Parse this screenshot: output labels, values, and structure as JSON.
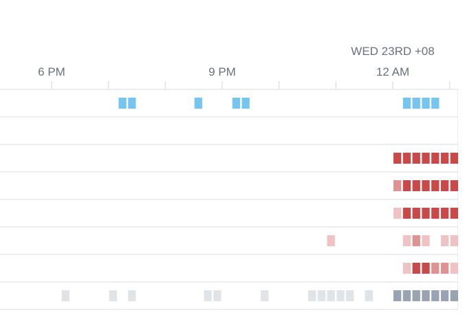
{
  "header": {
    "date_label": "WED 23RD +08"
  },
  "axis": {
    "hours": [
      0,
      1,
      2,
      3,
      4,
      5,
      6,
      7
    ],
    "labels": [
      "6 PM",
      null,
      null,
      "9 PM",
      null,
      null,
      "12 AM",
      null
    ]
  },
  "rows": [
    {
      "colors": [
        "#ffffff",
        "#76c5ef"
      ],
      "cells": [
        {
          "slot": 7,
          "level": 1
        },
        {
          "slot": 8,
          "level": 1
        },
        {
          "slot": 15,
          "level": 1
        },
        {
          "slot": 19,
          "level": 1
        },
        {
          "slot": 20,
          "level": 1
        },
        {
          "slot": 37,
          "level": 1
        },
        {
          "slot": 38,
          "level": 1
        },
        {
          "slot": 39,
          "level": 1
        },
        {
          "slot": 40,
          "level": 1
        }
      ]
    },
    {
      "colors": [
        "#ffffff"
      ],
      "cells": []
    },
    {
      "colors": [
        "#ffffff",
        "#efc3c3",
        "#de9292",
        "#c94848"
      ],
      "cells": [
        {
          "slot": 36,
          "level": 3
        },
        {
          "slot": 37,
          "level": 3
        },
        {
          "slot": 38,
          "level": 3
        },
        {
          "slot": 39,
          "level": 3
        },
        {
          "slot": 40,
          "level": 3
        },
        {
          "slot": 41,
          "level": 3
        },
        {
          "slot": 42,
          "level": 3
        }
      ]
    },
    {
      "colors": [
        "#ffffff",
        "#efc3c3",
        "#de9292",
        "#c94848"
      ],
      "cells": [
        {
          "slot": 36,
          "level": 2
        },
        {
          "slot": 37,
          "level": 3
        },
        {
          "slot": 38,
          "level": 3
        },
        {
          "slot": 39,
          "level": 3
        },
        {
          "slot": 40,
          "level": 3
        },
        {
          "slot": 41,
          "level": 3
        },
        {
          "slot": 42,
          "level": 3
        }
      ]
    },
    {
      "colors": [
        "#ffffff",
        "#efc3c3",
        "#de9292",
        "#c94848"
      ],
      "cells": [
        {
          "slot": 36,
          "level": 1
        },
        {
          "slot": 37,
          "level": 3
        },
        {
          "slot": 38,
          "level": 3
        },
        {
          "slot": 39,
          "level": 3
        },
        {
          "slot": 40,
          "level": 3
        },
        {
          "slot": 41,
          "level": 3
        },
        {
          "slot": 42,
          "level": 3
        }
      ]
    },
    {
      "colors": [
        "#ffffff",
        "#efc3c3",
        "#de9292",
        "#c94848"
      ],
      "cells": [
        {
          "slot": 29,
          "level": 1
        },
        {
          "slot": 37,
          "level": 1
        },
        {
          "slot": 38,
          "level": 2
        },
        {
          "slot": 39,
          "level": 1
        },
        {
          "slot": 41,
          "level": 1
        },
        {
          "slot": 42,
          "level": 1
        }
      ]
    },
    {
      "colors": [
        "#ffffff",
        "#efc3c3",
        "#de9292",
        "#c94848"
      ],
      "cells": [
        {
          "slot": 37,
          "level": 1
        },
        {
          "slot": 38,
          "level": 3
        },
        {
          "slot": 39,
          "level": 3
        },
        {
          "slot": 40,
          "level": 2
        },
        {
          "slot": 41,
          "level": 2
        },
        {
          "slot": 42,
          "level": 1
        }
      ]
    },
    {
      "colors": [
        "#ffffff",
        "#e0e3e8",
        "#99a3b1"
      ],
      "cells": [
        {
          "slot": 1,
          "level": 1
        },
        {
          "slot": 6,
          "level": 1
        },
        {
          "slot": 8,
          "level": 1
        },
        {
          "slot": 16,
          "level": 1
        },
        {
          "slot": 17,
          "level": 1
        },
        {
          "slot": 22,
          "level": 1
        },
        {
          "slot": 27,
          "level": 1
        },
        {
          "slot": 28,
          "level": 1
        },
        {
          "slot": 29,
          "level": 1
        },
        {
          "slot": 30,
          "level": 1
        },
        {
          "slot": 31,
          "level": 1
        },
        {
          "slot": 33,
          "level": 1
        },
        {
          "slot": 36,
          "level": 2
        },
        {
          "slot": 37,
          "level": 2
        },
        {
          "slot": 38,
          "level": 2
        },
        {
          "slot": 39,
          "level": 2
        },
        {
          "slot": 40,
          "level": 2
        },
        {
          "slot": 41,
          "level": 2
        },
        {
          "slot": 42,
          "level": 2
        }
      ]
    }
  ]
}
